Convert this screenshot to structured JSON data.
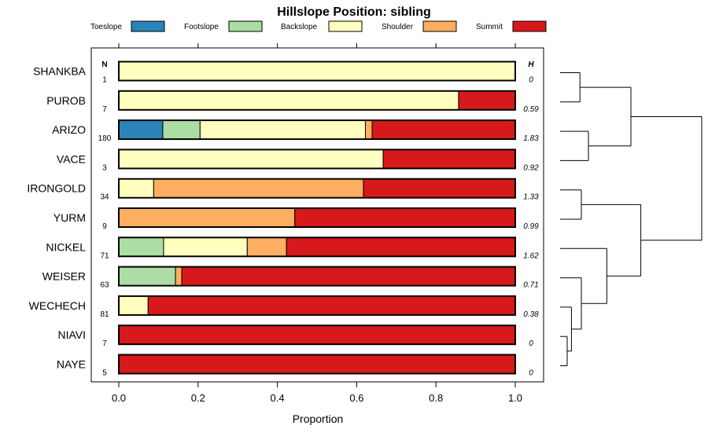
{
  "chart_data": {
    "type": "bar",
    "stacked": true,
    "orientation": "horizontal",
    "title": "Hillslope Position: sibling",
    "xlabel": "Proportion",
    "ylabel": "",
    "xlim": [
      0,
      1
    ],
    "xticks": [
      "0.0",
      "0.2",
      "0.4",
      "0.6",
      "0.8",
      "1.0"
    ],
    "legend_position": "top",
    "n_header": "N",
    "h_header": "H",
    "series": [
      {
        "name": "Toeslope",
        "color": "#2b83ba"
      },
      {
        "name": "Footslope",
        "color": "#abdda4"
      },
      {
        "name": "Backslope",
        "color": "#ffffbf"
      },
      {
        "name": "Shoulder",
        "color": "#fdae61"
      },
      {
        "name": "Summit",
        "color": "#d7191c"
      }
    ],
    "categories": [
      "SHANKBA",
      "PUROB",
      "ARIZO",
      "VACE",
      "IRONGOLD",
      "YURM",
      "NICKEL",
      "WEISER",
      "WECHECH",
      "NIAVI",
      "NAYE"
    ],
    "rows": [
      {
        "label": "SHANKBA",
        "n": "1",
        "h": "0",
        "values": [
          0,
          0,
          1.0,
          0,
          0
        ]
      },
      {
        "label": "PUROB",
        "n": "7",
        "h": "0.59",
        "values": [
          0,
          0,
          0.857,
          0,
          0.143
        ]
      },
      {
        "label": "ARIZO",
        "n": "180",
        "h": "1.83",
        "values": [
          0.111,
          0.094,
          0.417,
          0.017,
          0.361
        ]
      },
      {
        "label": "VACE",
        "n": "3",
        "h": "0.92",
        "values": [
          0,
          0,
          0.667,
          0,
          0.333
        ]
      },
      {
        "label": "IRONGOLD",
        "n": "34",
        "h": "1.33",
        "values": [
          0,
          0,
          0.088,
          0.529,
          0.383
        ]
      },
      {
        "label": "YURM",
        "n": "9",
        "h": "0.99",
        "values": [
          0,
          0,
          0,
          0.444,
          0.556
        ]
      },
      {
        "label": "NICKEL",
        "n": "71",
        "h": "1.62",
        "values": [
          0,
          0.113,
          0.211,
          0.099,
          0.577
        ]
      },
      {
        "label": "WEISER",
        "n": "63",
        "h": "0.71",
        "values": [
          0,
          0.143,
          0,
          0.016,
          0.841
        ]
      },
      {
        "label": "WECHECH",
        "n": "81",
        "h": "0.38",
        "values": [
          0,
          0,
          0.074,
          0,
          0.926
        ]
      },
      {
        "label": "NIAVI",
        "n": "7",
        "h": "0",
        "values": [
          0,
          0,
          0,
          0,
          1.0
        ]
      },
      {
        "label": "NAYE",
        "n": "5",
        "h": "0",
        "values": [
          0,
          0,
          0,
          0,
          1.0
        ]
      }
    ],
    "dendrogram": {
      "leaf_order": [
        "SHANKBA",
        "PUROB",
        "ARIZO",
        "VACE",
        "IRONGOLD",
        "YURM",
        "NICKEL",
        "WEISER",
        "WECHECH",
        "NIAVI",
        "NAYE"
      ],
      "merges": [
        {
          "a": "NIAVI",
          "b": "NAYE",
          "height": 0.05
        },
        {
          "a": "WECHECH",
          "b": "NIAVI+NAYE",
          "height": 0.08
        },
        {
          "a": "WEISER",
          "b": "WECHECH+NIAVI+NAYE",
          "height": 0.15
        },
        {
          "a": "NICKEL",
          "b": "WEISER+WECHECH+NIAVI+NAYE",
          "height": 0.33
        },
        {
          "a": "IRONGOLD",
          "b": "YURM",
          "height": 0.15
        },
        {
          "a": "IRONGOLD+YURM",
          "b": "NICKEL+WEISER+WECHECH+NIAVI+NAYE",
          "height": 0.57
        },
        {
          "a": "SHANKBA",
          "b": "PUROB",
          "height": 0.14
        },
        {
          "a": "ARIZO",
          "b": "VACE",
          "height": 0.2
        },
        {
          "a": "SHANKBA+PUROB",
          "b": "ARIZO+VACE",
          "height": 0.5
        },
        {
          "a": "top",
          "b": "bottom",
          "height": 1.0
        }
      ]
    }
  }
}
